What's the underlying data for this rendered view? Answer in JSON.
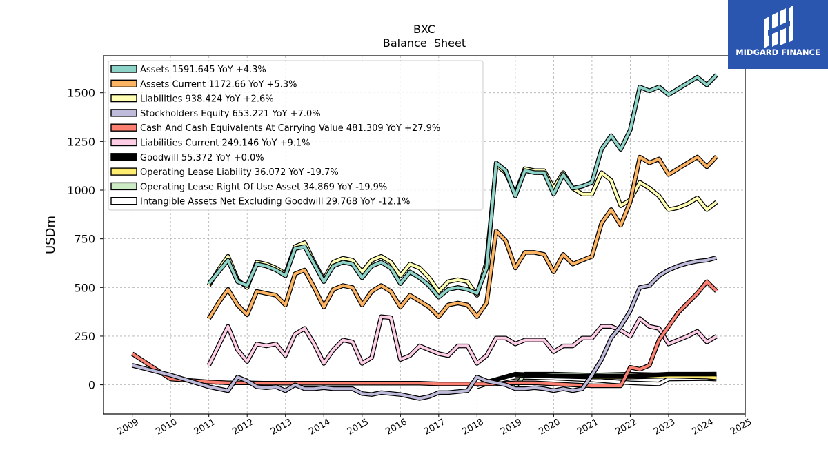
{
  "brand": {
    "name": "MIDGARD FINANCE",
    "color": "#2a56b0"
  },
  "chart_data": {
    "type": "line",
    "title": "BXC",
    "subtitle": "Balance  Sheet",
    "xlabel": "",
    "ylabel": "USDm",
    "xlim": [
      2008.25,
      2025.0
    ],
    "ylim": [
      -150,
      1690
    ],
    "xticks": [
      "2009",
      "2010",
      "2011",
      "2012",
      "2013",
      "2014",
      "2015",
      "2016",
      "2017",
      "2018",
      "2019",
      "2020",
      "2021",
      "2022",
      "2023",
      "2024",
      "2025"
    ],
    "yticks": [
      0,
      250,
      500,
      750,
      1000,
      1250,
      1500
    ],
    "grid": true,
    "legend_position": "top-left",
    "series": [
      {
        "name": "Assets",
        "legend": "Assets  1591.645 YoY +4.3%",
        "color": "#8dd3c7",
        "x": [
          2011.0,
          2011.25,
          2011.5,
          2011.75,
          2012.0,
          2012.25,
          2012.5,
          2012.75,
          2013.0,
          2013.25,
          2013.5,
          2013.75,
          2014.0,
          2014.25,
          2014.5,
          2014.75,
          2015.0,
          2015.25,
          2015.5,
          2015.75,
          2016.0,
          2016.25,
          2016.5,
          2016.75,
          2017.0,
          2017.25,
          2017.5,
          2017.75,
          2018.0,
          2018.25,
          2018.5,
          2018.75,
          2019.0,
          2019.25,
          2019.5,
          2019.75,
          2020.0,
          2020.25,
          2020.5,
          2020.75,
          2021.0,
          2021.25,
          2021.5,
          2021.75,
          2022.0,
          2022.25,
          2022.5,
          2022.75,
          2023.0,
          2023.25,
          2023.5,
          2023.75,
          2024.0,
          2024.25
        ],
        "y": [
          520,
          580,
          640,
          530,
          510,
          620,
          610,
          590,
          560,
          700,
          710,
          620,
          530,
          610,
          630,
          620,
          550,
          610,
          630,
          600,
          520,
          580,
          550,
          510,
          450,
          490,
          500,
          490,
          470,
          600,
          1140,
          1100,
          970,
          1100,
          1090,
          1090,
          980,
          1080,
          1010,
          1020,
          1040,
          1210,
          1280,
          1210,
          1310,
          1530,
          1510,
          1530,
          1490,
          1520,
          1550,
          1580,
          1540,
          1591.645
        ]
      },
      {
        "name": "Assets Current",
        "legend": "Assets Current  1172.66 YoY +5.3%",
        "color": "#fdb462",
        "x": [
          2011.0,
          2011.25,
          2011.5,
          2011.75,
          2012.0,
          2012.25,
          2012.5,
          2012.75,
          2013.0,
          2013.25,
          2013.5,
          2013.75,
          2014.0,
          2014.25,
          2014.5,
          2014.75,
          2015.0,
          2015.25,
          2015.5,
          2015.75,
          2016.0,
          2016.25,
          2016.5,
          2016.75,
          2017.0,
          2017.25,
          2017.5,
          2017.75,
          2018.0,
          2018.25,
          2018.5,
          2018.75,
          2019.0,
          2019.25,
          2019.5,
          2019.75,
          2020.0,
          2020.25,
          2020.5,
          2020.75,
          2021.0,
          2021.25,
          2021.5,
          2021.75,
          2022.0,
          2022.25,
          2022.5,
          2022.75,
          2023.0,
          2023.25,
          2023.5,
          2023.75,
          2024.0,
          2024.25
        ],
        "y": [
          340,
          420,
          490,
          410,
          360,
          480,
          470,
          460,
          410,
          570,
          590,
          500,
          400,
          490,
          510,
          500,
          410,
          480,
          510,
          480,
          400,
          460,
          430,
          400,
          350,
          410,
          420,
          410,
          350,
          420,
          790,
          740,
          600,
          680,
          680,
          670,
          580,
          670,
          620,
          640,
          660,
          830,
          900,
          820,
          940,
          1170,
          1140,
          1160,
          1080,
          1110,
          1140,
          1170,
          1120,
          1172.66
        ]
      },
      {
        "name": "Liabilities",
        "legend": "Liabilities  938.424 YoY +2.6%",
        "color": "#ffffb3",
        "x": [
          2011.0,
          2011.25,
          2011.5,
          2011.75,
          2012.0,
          2012.25,
          2012.5,
          2012.75,
          2013.0,
          2013.25,
          2013.5,
          2013.75,
          2014.0,
          2014.25,
          2014.5,
          2014.75,
          2015.0,
          2015.25,
          2015.5,
          2015.75,
          2016.0,
          2016.25,
          2016.5,
          2016.75,
          2017.0,
          2017.25,
          2017.5,
          2017.75,
          2018.0,
          2018.25,
          2018.5,
          2018.75,
          2019.0,
          2019.25,
          2019.5,
          2019.75,
          2020.0,
          2020.25,
          2020.5,
          2020.75,
          2021.0,
          2021.25,
          2021.5,
          2021.75,
          2022.0,
          2022.25,
          2022.5,
          2022.75,
          2023.0,
          2023.25,
          2023.5,
          2023.75,
          2024.0,
          2024.25
        ],
        "y": [
          510,
          590,
          660,
          540,
          500,
          630,
          620,
          600,
          570,
          710,
          730,
          630,
          540,
          630,
          650,
          640,
          580,
          640,
          660,
          630,
          560,
          620,
          600,
          550,
          480,
          530,
          540,
          530,
          460,
          630,
          1130,
          1090,
          980,
          1110,
          1100,
          1100,
          1010,
          1090,
          1010,
          980,
          980,
          1090,
          1050,
          920,
          950,
          1040,
          1010,
          970,
          900,
          910,
          930,
          960,
          900,
          938.424
        ]
      },
      {
        "name": "Stockholders Equity",
        "legend": "Stockholders Equity  653.221 YoY +7.0%",
        "color": "#bebada",
        "x": [
          2009.0,
          2010.0,
          2011.0,
          2011.25,
          2011.5,
          2011.75,
          2012.0,
          2012.25,
          2012.5,
          2012.75,
          2013.0,
          2013.25,
          2013.5,
          2013.75,
          2014.0,
          2014.25,
          2014.5,
          2014.75,
          2015.0,
          2015.25,
          2015.5,
          2015.75,
          2016.0,
          2016.25,
          2016.5,
          2016.75,
          2017.0,
          2017.25,
          2017.5,
          2017.75,
          2018.0,
          2018.25,
          2018.5,
          2018.75,
          2019.0,
          2019.25,
          2019.5,
          2019.75,
          2020.0,
          2020.25,
          2020.5,
          2020.75,
          2021.0,
          2021.25,
          2021.5,
          2021.75,
          2022.0,
          2022.25,
          2022.5,
          2022.75,
          2023.0,
          2023.25,
          2023.5,
          2023.75,
          2024.0,
          2024.25
        ],
        "y": [
          100,
          50,
          -10,
          -20,
          -30,
          40,
          20,
          -10,
          -15,
          -10,
          -30,
          0,
          -20,
          -20,
          -15,
          -20,
          -20,
          -20,
          -45,
          -50,
          -40,
          -45,
          -50,
          -60,
          -70,
          -60,
          -40,
          -40,
          -35,
          -30,
          40,
          20,
          10,
          0,
          -20,
          -20,
          -15,
          -20,
          -30,
          -20,
          -30,
          -20,
          50,
          130,
          240,
          300,
          380,
          500,
          510,
          560,
          590,
          610,
          625,
          635,
          640,
          653.221
        ]
      },
      {
        "name": "Cash And Cash Equivalents At Carrying Value",
        "legend": "Cash And Cash Equivalents At Carrying Value  481.309 YoY +27.9%",
        "color": "#fb8072",
        "x": [
          2009.0,
          2010.0,
          2011.0,
          2011.5,
          2012.0,
          2012.5,
          2013.0,
          2013.5,
          2014.0,
          2014.5,
          2015.0,
          2015.5,
          2016.0,
          2016.5,
          2017.0,
          2017.5,
          2018.0,
          2018.5,
          2019.0,
          2019.5,
          2020.0,
          2020.5,
          2021.0,
          2021.5,
          2021.75,
          2022.0,
          2022.25,
          2022.5,
          2022.75,
          2023.0,
          2023.25,
          2023.5,
          2023.75,
          2024.0,
          2024.25
        ],
        "y": [
          160,
          30,
          15,
          10,
          10,
          8,
          8,
          8,
          8,
          8,
          8,
          8,
          8,
          8,
          5,
          5,
          5,
          5,
          10,
          10,
          5,
          0,
          -5,
          -5,
          -5,
          90,
          80,
          100,
          230,
          300,
          370,
          420,
          470,
          530,
          481.309
        ]
      },
      {
        "name": "Liabilities Current",
        "legend": "Liabilities Current  249.146 YoY +9.1%",
        "color": "#fccde5",
        "x": [
          2011.0,
          2011.25,
          2011.5,
          2011.75,
          2012.0,
          2012.25,
          2012.5,
          2012.75,
          2013.0,
          2013.25,
          2013.5,
          2013.75,
          2014.0,
          2014.25,
          2014.5,
          2014.75,
          2015.0,
          2015.25,
          2015.5,
          2015.75,
          2016.0,
          2016.25,
          2016.5,
          2016.75,
          2017.0,
          2017.25,
          2017.5,
          2017.75,
          2018.0,
          2018.25,
          2018.5,
          2018.75,
          2019.0,
          2019.25,
          2019.5,
          2019.75,
          2020.0,
          2020.25,
          2020.5,
          2020.75,
          2021.0,
          2021.25,
          2021.5,
          2021.75,
          2022.0,
          2022.25,
          2022.5,
          2022.75,
          2023.0,
          2023.25,
          2023.5,
          2023.75,
          2024.0,
          2024.25
        ],
        "y": [
          100,
          200,
          300,
          180,
          120,
          210,
          200,
          210,
          150,
          260,
          290,
          210,
          110,
          180,
          230,
          220,
          110,
          140,
          350,
          345,
          130,
          150,
          200,
          180,
          160,
          150,
          200,
          200,
          110,
          150,
          240,
          240,
          210,
          230,
          230,
          230,
          170,
          200,
          200,
          240,
          240,
          300,
          300,
          280,
          250,
          340,
          300,
          290,
          210,
          230,
          250,
          275,
          220,
          249.146
        ]
      },
      {
        "name": "Goodwill",
        "legend": "Goodwill  55.372 YoY +0.0%",
        "color": "#000000",
        "x": [
          2018.0,
          2019.0,
          2020.0,
          2021.0,
          2022.0,
          2023.0,
          2024.0,
          2024.25
        ],
        "y": [
          0,
          55,
          45,
          45,
          45,
          55,
          55,
          55.372
        ]
      },
      {
        "name": "Operating Lease Liability",
        "legend": "Operating Lease Liability  36.072 YoY -19.7%",
        "color": "#ffed6f",
        "x": [
          2019.0,
          2020.0,
          2021.0,
          2022.0,
          2023.0,
          2024.0,
          2024.25
        ],
        "y": [
          50,
          45,
          40,
          40,
          45,
          40,
          36.072
        ]
      },
      {
        "name": "Operating Lease Right Of Use Asset",
        "legend": "Operating Lease Right Of Use Asset  34.869 YoY -19.9%",
        "color": "#ccebc5",
        "x": [
          2019.0,
          2019.25,
          2020.0,
          2021.0,
          2022.0,
          2023.0,
          2024.0,
          2024.25
        ],
        "y": [
          -10,
          55,
          55,
          50,
          55,
          50,
          40,
          34.869
        ]
      },
      {
        "name": "Intangible Assets Net Excluding Goodwill",
        "legend": "Intangible Assets Net Excluding Goodwill  29.768 YoY -12.1%",
        "color": "#ffffff",
        "x": [
          2018.0,
          2018.5,
          2019.0,
          2020.0,
          2021.0,
          2022.0,
          2022.75,
          2023.0,
          2024.0,
          2024.25
        ],
        "y": [
          -10,
          20,
          40,
          35,
          25,
          10,
          5,
          30,
          32,
          29.768
        ]
      }
    ]
  }
}
